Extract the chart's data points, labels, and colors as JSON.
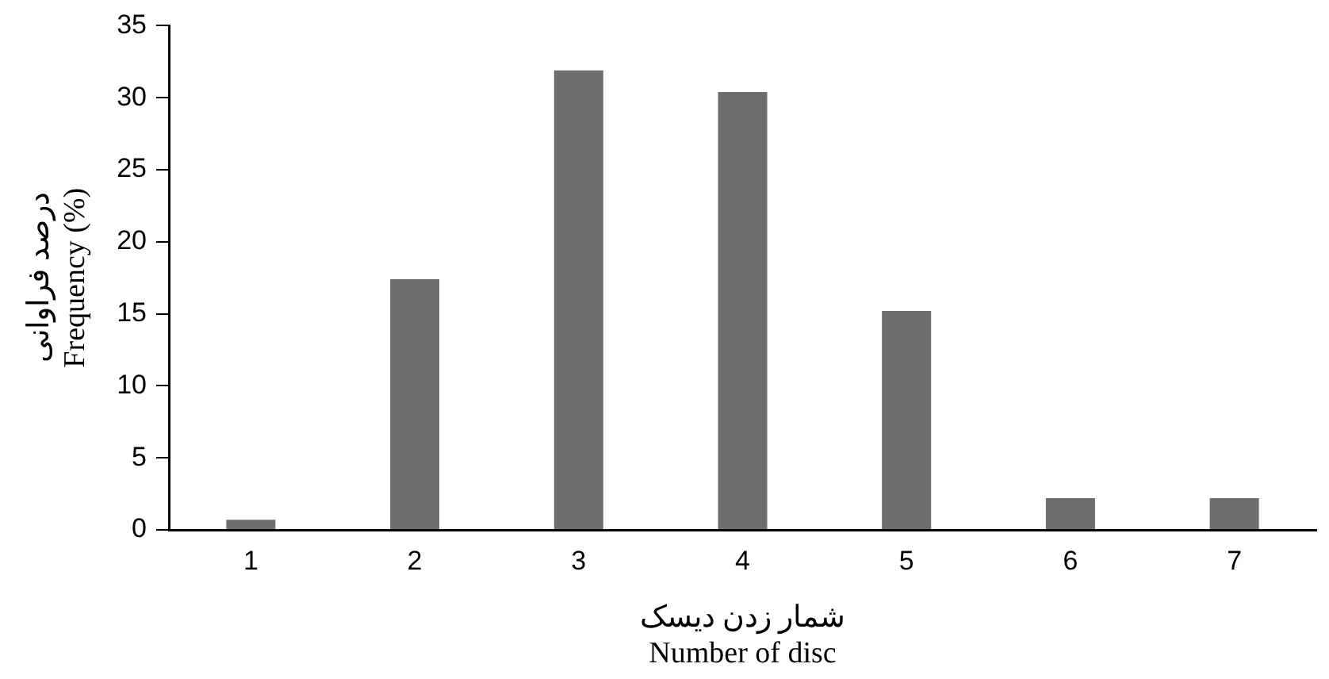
{
  "chart_data": {
    "type": "bar",
    "categories": [
      "1",
      "2",
      "3",
      "4",
      "5",
      "6",
      "7"
    ],
    "values": [
      0.7,
      17.4,
      31.9,
      30.4,
      15.2,
      2.2,
      2.2
    ],
    "color": "#6e6e6e",
    "ylim": [
      0,
      35
    ],
    "yticks": [
      0,
      5,
      10,
      15,
      20,
      25,
      30,
      35
    ],
    "xlabel": "شمار زدن دیسک\nNumber of disc",
    "ylabel": "درصد فراوانی\nFrequency (%)",
    "grid": false,
    "legend": false
  }
}
